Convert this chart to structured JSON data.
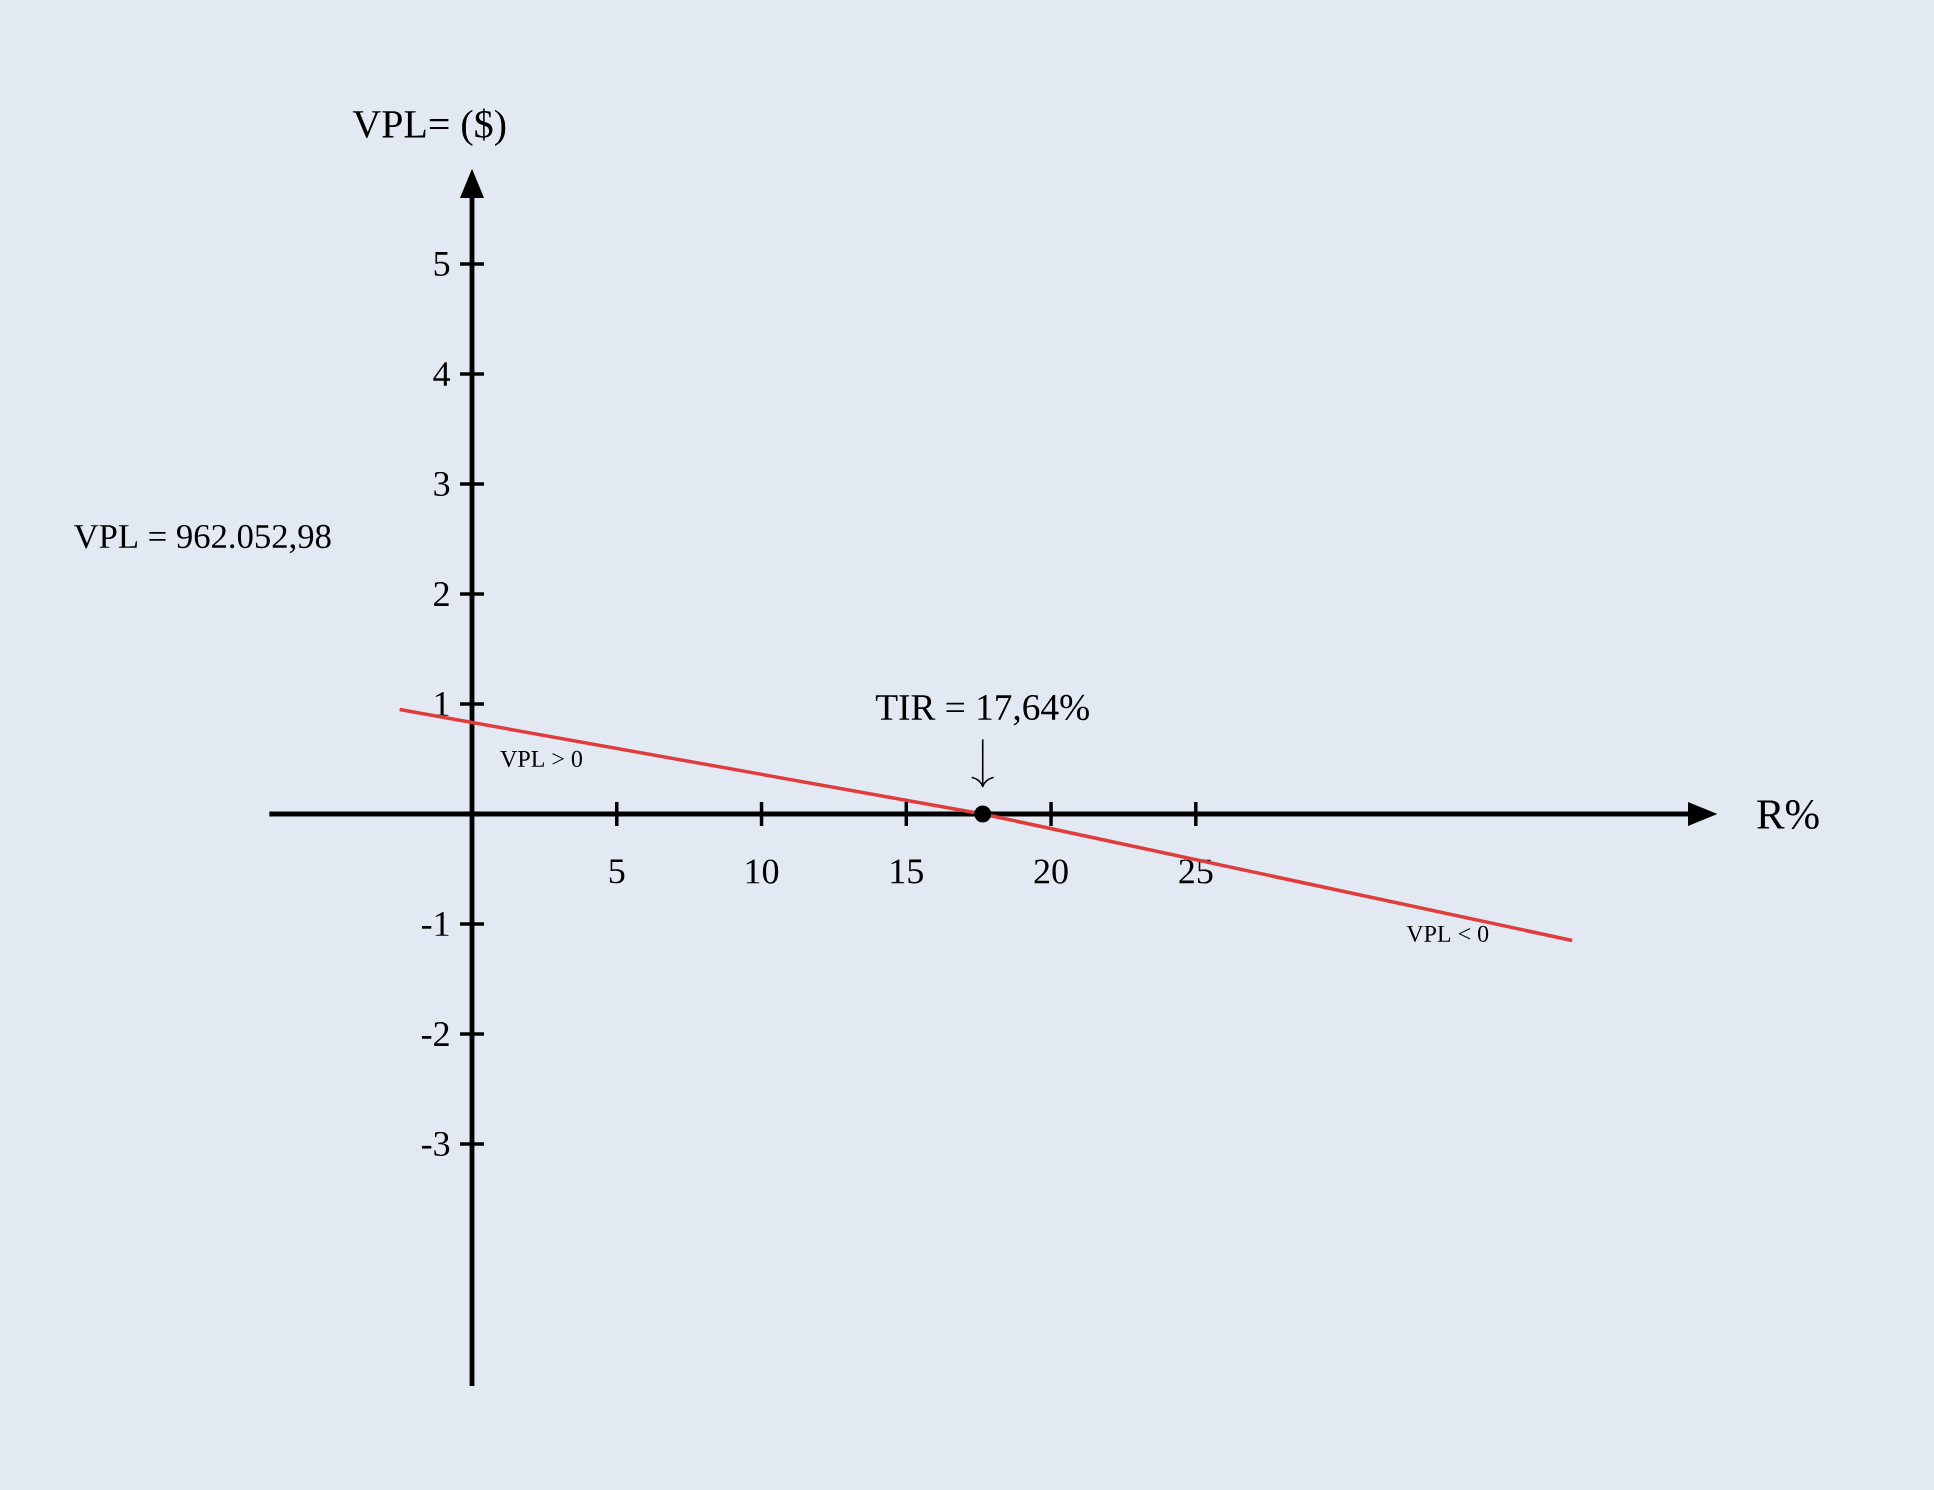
{
  "chart_data": {
    "type": "line",
    "xlabel": "R%",
    "ylabel": "VPL=  ($)",
    "xlim": [
      -7,
      42
    ],
    "ylim": [
      -5.2,
      5.6
    ],
    "xticks": [
      5,
      10,
      15,
      20,
      25
    ],
    "yticks": [
      -3,
      -2,
      -1,
      1,
      2,
      3,
      4,
      5
    ],
    "series": [
      {
        "type": "line",
        "color": "#e03c3c",
        "x": [
          -2.5,
          17.64,
          38
        ],
        "values": [
          0.95,
          0,
          -1.15
        ]
      },
      {
        "type": "scatter",
        "color": "#000000",
        "x": [
          17.64
        ],
        "values": [
          0
        ]
      }
    ],
    "annotations": [
      "VPL = 962.052,98",
      {
        "text": "TIR = 17,64%",
        "x": 17.64,
        "y": 0
      },
      "VPL > 0",
      "VPL < 0"
    ],
    "grid": false
  }
}
